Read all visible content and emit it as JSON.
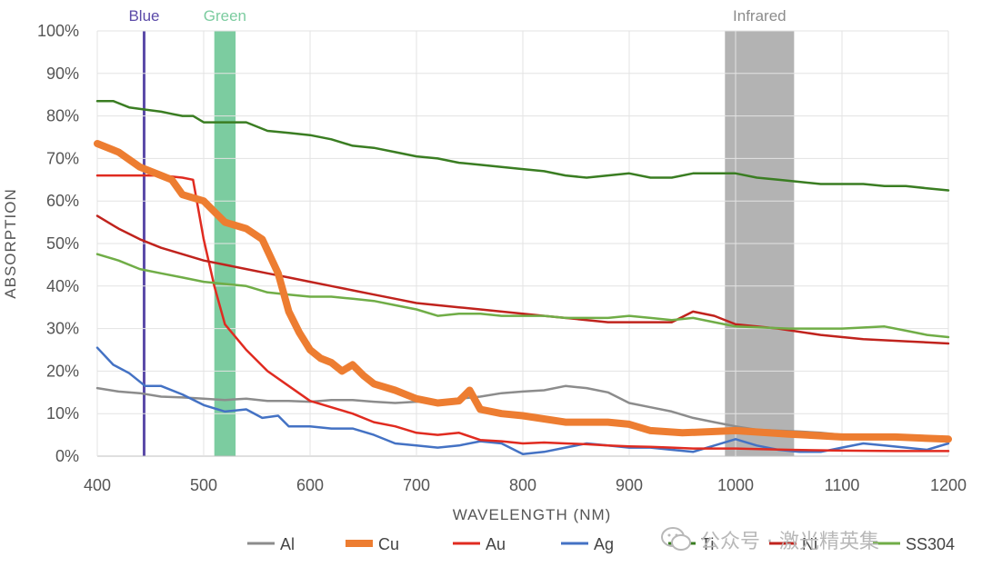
{
  "chart_data": {
    "type": "line",
    "title": "",
    "xlabel": "WAVELENGTH (NM)",
    "ylabel": "ABSORPTION",
    "xlim": [
      400,
      1200
    ],
    "ylim": [
      0,
      100
    ],
    "x_ticks": [
      "400",
      "500",
      "600",
      "700",
      "800",
      "900",
      "1000",
      "1100",
      "1200"
    ],
    "y_ticks": [
      "0%",
      "10%",
      "20%",
      "30%",
      "40%",
      "50%",
      "60%",
      "70%",
      "80%",
      "90%",
      "100%"
    ],
    "grid": true,
    "legend_position": "bottom",
    "bands": [
      {
        "label": "Blue",
        "x_from": 444,
        "x_to": 444,
        "color": "#5b4aa8"
      },
      {
        "label": "Green",
        "x_from": 510,
        "x_to": 530,
        "color": "#7ccca0"
      },
      {
        "label": "Infrared",
        "x_from": 990,
        "x_to": 1055,
        "color": "#b3b3b3"
      }
    ],
    "series": [
      {
        "name": "Al",
        "color": "#8c8c8c",
        "width": 2.5,
        "x": [
          400,
          420,
          440,
          460,
          480,
          500,
          520,
          540,
          560,
          580,
          600,
          620,
          640,
          660,
          680,
          700,
          720,
          740,
          760,
          780,
          800,
          820,
          840,
          860,
          880,
          900,
          920,
          940,
          960,
          980,
          1000,
          1020,
          1040,
          1060,
          1080,
          1100,
          1120,
          1140,
          1160,
          1180,
          1200
        ],
        "y": [
          16,
          15.2,
          14.8,
          14,
          13.8,
          13.5,
          13.2,
          13.5,
          13,
          13,
          12.8,
          13.2,
          13.2,
          12.8,
          12.5,
          12.8,
          13,
          13.5,
          14,
          14.8,
          15.2,
          15.5,
          16.5,
          16,
          15,
          12.5,
          11.5,
          10.5,
          9,
          8,
          7,
          6.2,
          6,
          5.8,
          5.5,
          5,
          4.8,
          4.5,
          4.2,
          4,
          3.8
        ]
      },
      {
        "name": "Cu",
        "color": "#ed7d31",
        "width": 8,
        "x": [
          400,
          420,
          440,
          460,
          470,
          480,
          500,
          510,
          520,
          540,
          555,
          570,
          580,
          590,
          600,
          610,
          620,
          630,
          640,
          650,
          660,
          680,
          700,
          720,
          740,
          750,
          760,
          780,
          800,
          840,
          880,
          900,
          920,
          950,
          1000,
          1050,
          1100,
          1150,
          1200
        ],
        "y": [
          73.5,
          71.5,
          68,
          66,
          65,
          61.5,
          60,
          57.5,
          55,
          53.5,
          51,
          43,
          34,
          29,
          25,
          23,
          22,
          20,
          21.5,
          19,
          17,
          15.5,
          13.5,
          12.5,
          13,
          15.5,
          11,
          10,
          9.5,
          8,
          8,
          7.5,
          6,
          5.5,
          6,
          5.2,
          4.5,
          4.5,
          4
        ]
      },
      {
        "name": "Au",
        "color": "#e02b20",
        "width": 2.5,
        "x": [
          400,
          420,
          440,
          460,
          480,
          490,
          500,
          510,
          520,
          540,
          560,
          580,
          600,
          620,
          640,
          660,
          680,
          700,
          720,
          740,
          760,
          780,
          800,
          820,
          840,
          860,
          880,
          900,
          920,
          940,
          960,
          980,
          1000,
          1050,
          1100,
          1150,
          1200
        ],
        "y": [
          66,
          66,
          66,
          66,
          65.5,
          65,
          51,
          40,
          31,
          25,
          20,
          16.5,
          13,
          11.5,
          10,
          8,
          7,
          5.5,
          5,
          5.5,
          3.8,
          3.5,
          3,
          3.2,
          3,
          2.8,
          2.5,
          2.3,
          2.2,
          2,
          1.8,
          1.8,
          1.8,
          1.5,
          1.3,
          1.2,
          1.2
        ]
      },
      {
        "name": "Ag",
        "color": "#4472c4",
        "width": 2.5,
        "x": [
          400,
          415,
          430,
          445,
          460,
          480,
          500,
          520,
          540,
          555,
          570,
          580,
          600,
          620,
          640,
          660,
          680,
          700,
          720,
          740,
          760,
          780,
          800,
          820,
          840,
          860,
          880,
          900,
          920,
          940,
          960,
          980,
          1000,
          1020,
          1040,
          1060,
          1080,
          1100,
          1120,
          1140,
          1160,
          1180,
          1200
        ],
        "y": [
          25.5,
          21.5,
          19.5,
          16.5,
          16.5,
          14.5,
          12,
          10.5,
          11,
          9,
          9.5,
          7,
          7,
          6.5,
          6.5,
          5,
          3,
          2.5,
          2,
          2.5,
          3.5,
          3,
          0.5,
          1,
          2,
          3,
          2.5,
          2,
          2,
          1.5,
          1,
          2.5,
          4,
          2.5,
          1.5,
          1,
          1,
          2,
          3,
          2.5,
          2,
          1.5,
          3
        ]
      },
      {
        "name": "Ti",
        "color": "#3a7d22",
        "width": 2.5,
        "x": [
          400,
          415,
          430,
          445,
          460,
          470,
          480,
          490,
          500,
          520,
          540,
          560,
          580,
          600,
          620,
          640,
          660,
          680,
          700,
          720,
          740,
          760,
          780,
          800,
          820,
          840,
          860,
          880,
          900,
          920,
          940,
          960,
          980,
          1000,
          1020,
          1040,
          1060,
          1080,
          1100,
          1120,
          1140,
          1160,
          1180,
          1200
        ],
        "y": [
          83.5,
          83.5,
          82,
          81.5,
          81,
          80.5,
          80,
          80,
          78.5,
          78.5,
          78.5,
          76.5,
          76,
          75.5,
          74.5,
          73,
          72.5,
          71.5,
          70.5,
          70,
          69,
          68.5,
          68,
          67.5,
          67,
          66,
          65.5,
          66,
          66.5,
          65.5,
          65.5,
          66.5,
          66.5,
          66.5,
          65.5,
          65,
          64.5,
          64,
          64,
          64,
          63.5,
          63.5,
          63,
          62.5
        ]
      },
      {
        "name": "Ni",
        "color": "#c0231d",
        "width": 2.5,
        "x": [
          400,
          420,
          440,
          460,
          480,
          500,
          520,
          540,
          560,
          580,
          600,
          620,
          640,
          660,
          680,
          700,
          720,
          740,
          760,
          780,
          800,
          820,
          840,
          860,
          880,
          900,
          920,
          940,
          960,
          980,
          1000,
          1040,
          1080,
          1120,
          1160,
          1200
        ],
        "y": [
          56.5,
          53.5,
          51,
          49,
          47.5,
          46,
          45,
          44,
          43,
          42,
          41,
          40,
          39,
          38,
          37,
          36,
          35.5,
          35,
          34.5,
          34,
          33.5,
          33,
          32.5,
          32,
          31.5,
          31.5,
          31.5,
          31.5,
          34,
          33,
          31,
          30,
          28.5,
          27.5,
          27,
          26.5
        ]
      },
      {
        "name": "SS304",
        "color": "#70ad47",
        "width": 2.5,
        "x": [
          400,
          420,
          440,
          460,
          480,
          500,
          520,
          540,
          560,
          580,
          600,
          620,
          640,
          660,
          680,
          700,
          720,
          740,
          760,
          780,
          800,
          820,
          840,
          860,
          880,
          900,
          920,
          940,
          960,
          980,
          1000,
          1050,
          1100,
          1140,
          1160,
          1180,
          1200
        ],
        "y": [
          47.5,
          46,
          44,
          43,
          42,
          41,
          40.5,
          40,
          38.5,
          38,
          37.5,
          37.5,
          37,
          36.5,
          35.5,
          34.5,
          33,
          33.5,
          33.5,
          33,
          33,
          33,
          32.5,
          32.5,
          32.5,
          33,
          32.5,
          32,
          32.5,
          31.5,
          30.5,
          30,
          30,
          30.5,
          29.5,
          28.5,
          28
        ]
      }
    ]
  },
  "watermark": {
    "text": "公众号 · 激光精英集"
  }
}
